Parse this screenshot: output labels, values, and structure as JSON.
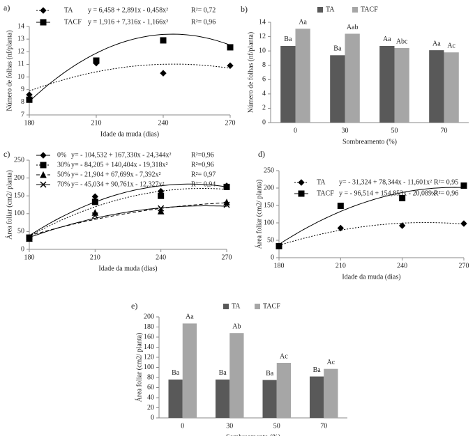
{
  "chart_data": [
    {
      "type": "scatter",
      "label": "a)",
      "xlabel": "Idade da muda (dias)",
      "ylabel": "Número de folhas (nf/planta)",
      "x": [
        180,
        210,
        240,
        270
      ],
      "xlim": [
        180,
        270
      ],
      "xticks": [
        180,
        210,
        240,
        270
      ],
      "ylim": [
        7,
        14
      ],
      "yticks": [
        7,
        8,
        9,
        10,
        11,
        12,
        13,
        14
      ],
      "series": [
        {
          "name": "TA",
          "equation": "y = 6,458 + 2,891x - 0,458x²",
          "r2": "R²= 0,72",
          "marker": "diamond",
          "linestyle": "dotted",
          "color": "#000000",
          "values": [
            8.6,
            11.1,
            10.3,
            10.9
          ]
        },
        {
          "name": "TACF",
          "equation": "y = 1,916 + 7,316x - 1,166x²",
          "r2": "R²= 0,96",
          "marker": "square",
          "linestyle": "solid",
          "color": "#000000",
          "values": [
            8.2,
            11.3,
            12.9,
            12.35
          ]
        }
      ]
    },
    {
      "type": "bar",
      "label": "b)",
      "xlabel": "Sombreamento  (%)",
      "ylabel": "Número de folhas  (nf/planta)",
      "categories": [
        "0",
        "30",
        "50",
        "70"
      ],
      "ylim": [
        0,
        14
      ],
      "yticks": [
        0,
        2,
        4,
        6,
        8,
        10,
        12,
        14
      ],
      "series": [
        {
          "name": "TA",
          "color": "#595959",
          "values": [
            10.7,
            9.4,
            10.7,
            10.1
          ],
          "letters": [
            "Ba",
            "Ba",
            "Aa",
            "Aa"
          ]
        },
        {
          "name": "TACF",
          "color": "#a6a6a6",
          "values": [
            13.1,
            12.4,
            10.4,
            9.8
          ],
          "letters": [
            "Aa",
            "Aab",
            "Abc",
            "Ac"
          ]
        }
      ]
    },
    {
      "type": "scatter",
      "label": "c)",
      "xlabel": "Idade da muda (dias)",
      "ylabel": "Área foliar  (cm2/ planta)",
      "x": [
        180,
        210,
        240,
        270
      ],
      "xlim": [
        180,
        270
      ],
      "xticks": [
        180,
        210,
        240,
        270
      ],
      "ylim": [
        0,
        250
      ],
      "yticks": [
        0,
        50,
        100,
        150,
        200,
        250
      ],
      "series": [
        {
          "name": "0%",
          "equation": "y= - 104,532 + 167,330x - 24,344x²",
          "r2": "R²=0,96",
          "marker": "diamond",
          "linestyle": "solid",
          "color": "#000000",
          "values": [
            33,
            148,
            163,
            178
          ]
        },
        {
          "name": "30%",
          "equation": "y= -  84,205 + 140,404x - 19,318x²",
          "r2": "R²=0,96",
          "marker": "square",
          "linestyle": "dotted",
          "color": "#000000",
          "values": [
            33,
            133,
            150,
            175
          ]
        },
        {
          "name": "50%",
          "equation": "y= -  21,904 +  67,699x -  7,392x²",
          "r2": "R²= 0,97",
          "marker": "triangle",
          "linestyle": "dashed",
          "color": "#000000",
          "values": [
            30,
            103,
            107,
            132
          ]
        },
        {
          "name": "70%",
          "equation": "y= -  45,034 +  90,761x - 12,327x²",
          "r2": "R²= 0,94",
          "marker": "x",
          "linestyle": "solid",
          "color": "#000000",
          "values": [
            30,
            95,
            115,
            125
          ]
        }
      ]
    },
    {
      "type": "scatter",
      "label": "d)",
      "xlabel": "Idade da muda (dias)",
      "ylabel": "Área foliar  (cm2/ planta)",
      "x": [
        180,
        210,
        240,
        270
      ],
      "xlim": [
        180,
        270
      ],
      "xticks": [
        180,
        210,
        240,
        270
      ],
      "ylim": [
        0,
        250
      ],
      "yticks": [
        0,
        50,
        100,
        150,
        200,
        250
      ],
      "series": [
        {
          "name": "TA",
          "equation": "y= - 31,324 +  78,344x - 11,601x²",
          "r2": "R²= 0,95",
          "marker": "diamond",
          "linestyle": "dotted",
          "color": "#000000",
          "values": [
            33,
            85,
            92,
            98
          ]
        },
        {
          "name": "TACF",
          "equation": "y = - 96,514 + 154,853x - 20,089x²",
          "r2": "R²= 0,96",
          "marker": "square",
          "linestyle": "solid",
          "color": "#000000",
          "values": [
            33,
            149,
            171,
            207
          ]
        }
      ]
    },
    {
      "type": "bar",
      "label": "e)",
      "xlabel": "Sombreamento (%)",
      "ylabel": "Área foliar  (cm2/ planta)",
      "categories": [
        "0",
        "30",
        "50",
        "70"
      ],
      "ylim": [
        0,
        200
      ],
      "yticks": [
        0,
        20,
        40,
        60,
        80,
        100,
        120,
        140,
        160,
        180,
        200
      ],
      "series": [
        {
          "name": "TA",
          "color": "#595959",
          "values": [
            76,
            76,
            75,
            82
          ],
          "letters": [
            "Ba",
            "Ba",
            "Ba",
            "Ba"
          ]
        },
        {
          "name": "TACF",
          "color": "#a6a6a6",
          "values": [
            187,
            168,
            109,
            97
          ],
          "letters": [
            "Aa",
            "Ab",
            "Ac",
            "Ac"
          ]
        }
      ]
    }
  ]
}
